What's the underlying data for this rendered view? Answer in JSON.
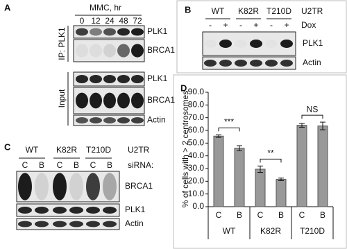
{
  "panel_a": {
    "label": "A",
    "title": "MMC, hr",
    "lanes": [
      "0",
      "12",
      "24",
      "48",
      "72"
    ],
    "ip_label": "IP: PLK1",
    "input_label": "Input",
    "blots": [
      "PLK1",
      "BRCA1",
      "PLK1",
      "BRCA1",
      "Actin"
    ]
  },
  "panel_b": {
    "label": "B",
    "groups": [
      "WT",
      "K82R",
      "T210D"
    ],
    "cell_line": "U2TR",
    "dox_signs": [
      "-",
      "+",
      "-",
      "+",
      "-",
      "+"
    ],
    "dox_label": "Dox",
    "blots": [
      "PLK1",
      "Actin"
    ]
  },
  "panel_c": {
    "label": "C",
    "groups": [
      "WT",
      "K82R",
      "T210D"
    ],
    "cell_line": "U2TR",
    "sirna_lanes": [
      "C",
      "B",
      "C",
      "B",
      "C",
      "B"
    ],
    "sirna_label": "siRNA:",
    "blots": [
      "BRCA1",
      "PLK1",
      "Actin"
    ]
  },
  "chart_data": {
    "type": "bar",
    "panel_label": "D",
    "ylabel": "% of cells with > 2 centrosomes",
    "categories": [
      "C",
      "B",
      "C",
      "B",
      "C",
      "B"
    ],
    "groups": [
      "WT",
      "K82R",
      "T210D"
    ],
    "values": [
      55.5,
      46,
      29.5,
      21.5,
      64,
      63.5
    ],
    "errors": [
      1,
      2,
      2.5,
      1,
      1.5,
      3
    ],
    "color": "#999999",
    "ylim": [
      0,
      90
    ],
    "yticks": [
      {
        "value": 0,
        "label": "0.0"
      },
      {
        "value": 10,
        "label": "10.0"
      },
      {
        "value": 20,
        "label": "20.0"
      },
      {
        "value": 30,
        "label": "30.0"
      },
      {
        "value": 40,
        "label": "40.0"
      },
      {
        "value": 50,
        "label": "50.0"
      },
      {
        "value": 60,
        "label": "60.0"
      },
      {
        "value": 70,
        "label": "70.0"
      },
      {
        "value": 80,
        "label": "80.0"
      },
      {
        "value": 90,
        "label": "90.0"
      }
    ],
    "annotations": [
      "***",
      "**",
      "NS"
    ]
  }
}
